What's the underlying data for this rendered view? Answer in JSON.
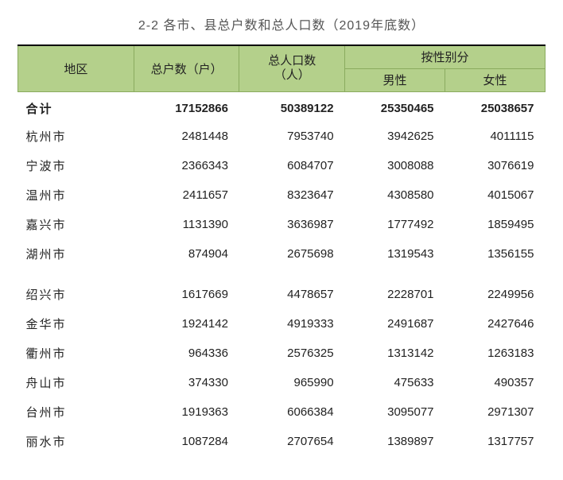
{
  "table": {
    "type": "table",
    "title": "2-2 各市、县总户数和总人口数（2019年底数）",
    "background_color": "#ffffff",
    "header_bg_color": "#b4d08b",
    "header_border_color": "#8aab5f",
    "top_rule_color": "#000000",
    "text_color": "#222222",
    "title_color": "#555555",
    "title_fontsize": 16,
    "body_fontsize": 15,
    "column_widths_pct": [
      22,
      20,
      20,
      19,
      19
    ],
    "columns": {
      "region": "地区",
      "households": "总户数（户）",
      "population": "总人口数（人）",
      "by_sex": "按性别分",
      "male": "男性",
      "female": "女性"
    },
    "rows": [
      {
        "region": "合计",
        "households": "17152866",
        "population": "50389122",
        "male": "25350465",
        "female": "25038657",
        "bold": true
      },
      {
        "region": "杭州市",
        "households": "2481448",
        "population": "7953740",
        "male": "3942625",
        "female": "4011115"
      },
      {
        "region": "宁波市",
        "households": "2366343",
        "population": "6084707",
        "male": "3008088",
        "female": "3076619"
      },
      {
        "region": "温州市",
        "households": "2411657",
        "population": "8323647",
        "male": "4308580",
        "female": "4015067"
      },
      {
        "region": "嘉兴市",
        "households": "1131390",
        "population": "3636987",
        "male": "1777492",
        "female": "1859495"
      },
      {
        "region": "湖州市",
        "households": "874904",
        "population": "2675698",
        "male": "1319543",
        "female": "1356155"
      },
      {
        "gap": true
      },
      {
        "region": "绍兴市",
        "households": "1617669",
        "population": "4478657",
        "male": "2228701",
        "female": "2249956"
      },
      {
        "region": "金华市",
        "households": "1924142",
        "population": "4919333",
        "male": "2491687",
        "female": "2427646"
      },
      {
        "region": "衢州市",
        "households": "964336",
        "population": "2576325",
        "male": "1313142",
        "female": "1263183"
      },
      {
        "region": "舟山市",
        "households": "374330",
        "population": "965990",
        "male": "475633",
        "female": "490357"
      },
      {
        "region": "台州市",
        "households": "1919363",
        "population": "6066384",
        "male": "3095077",
        "female": "2971307"
      },
      {
        "region": "丽水市",
        "households": "1087284",
        "population": "2707654",
        "male": "1389897",
        "female": "1317757"
      }
    ]
  }
}
